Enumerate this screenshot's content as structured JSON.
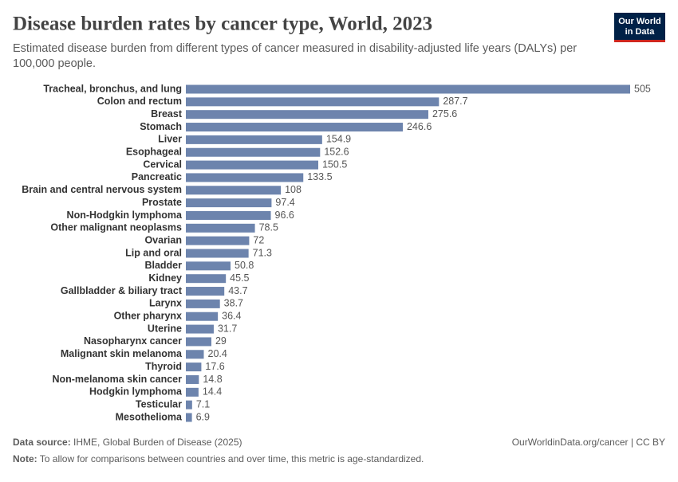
{
  "chart_data": {
    "type": "bar",
    "orientation": "horizontal",
    "title": "Disease burden rates by cancer type, World, 2023",
    "subtitle": [
      "Estimated disease burden from different types of cancer measured in disability-adjusted life years (DALYs) per",
      "100,000 people."
    ],
    "color": "#6d84ad",
    "categories": [
      "Tracheal, bronchus, and lung",
      "Colon and rectum",
      "Breast",
      "Stomach",
      "Liver",
      "Esophageal",
      "Cervical",
      "Pancreatic",
      "Brain and central nervous system",
      "Prostate",
      "Non-Hodgkin lymphoma",
      "Other malignant neoplasms",
      "Ovarian",
      "Lip and oral",
      "Bladder",
      "Kidney",
      "Gallbladder & biliary tract",
      "Larynx",
      "Other pharynx",
      "Uterine",
      "Nasopharynx cancer",
      "Malignant skin melanoma",
      "Thyroid",
      "Non-melanoma skin cancer",
      "Hodgkin lymphoma",
      "Testicular",
      "Mesothelioma"
    ],
    "values": [
      505,
      287.7,
      275.6,
      246.6,
      154.9,
      152.6,
      150.5,
      133.5,
      108,
      97.4,
      96.6,
      78.5,
      72,
      71.3,
      50.8,
      45.5,
      43.7,
      38.7,
      36.4,
      31.7,
      29,
      20.4,
      17.6,
      14.8,
      14.4,
      7.1,
      6.9
    ]
  },
  "footer": {
    "source_label": "Data source:",
    "source": "IHME, Global Burden of Disease (2025)",
    "url": "OurWorldinData.org/cancer | CC BY",
    "note_label": "Note:",
    "note": "To allow for comparisons between countries and over time, this metric is age-standardized."
  },
  "logo": [
    "Our World",
    "in Data"
  ]
}
